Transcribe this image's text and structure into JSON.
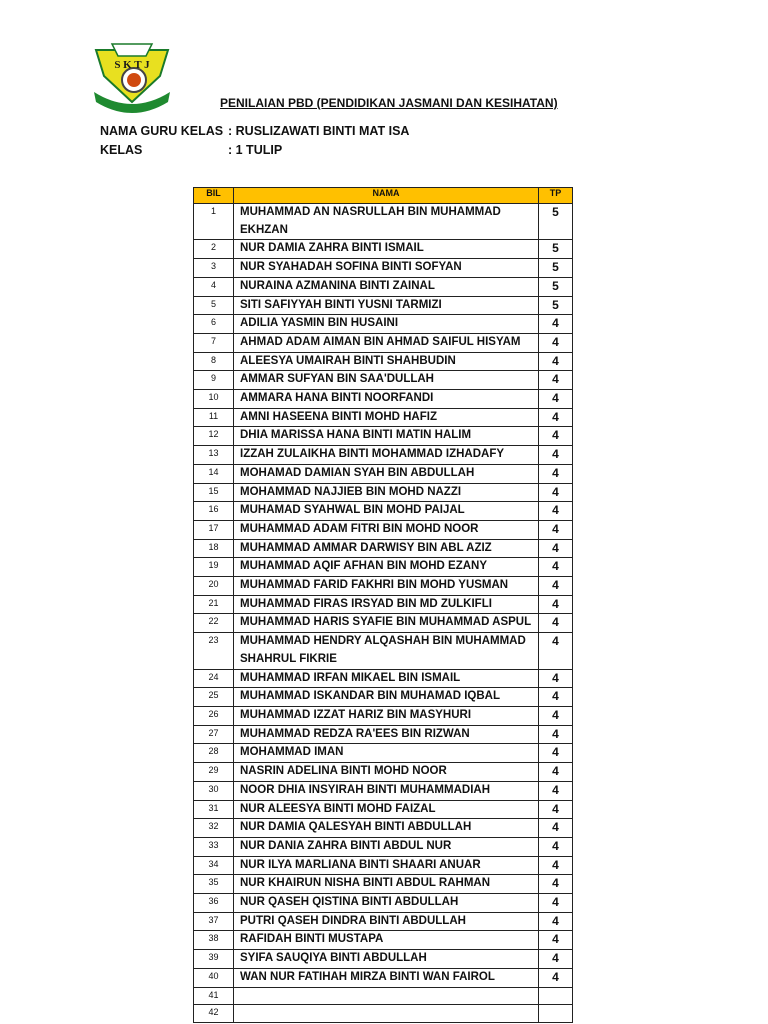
{
  "logo": {
    "text": "SKTJ"
  },
  "title": "PENILAIAN PBD (PENDIDIKAN JASMANI DAN KESIHATAN)",
  "teacher": {
    "label": "NAMA GURU KELAS",
    "value": ": RUSLIZAWATI BINTI MAT ISA"
  },
  "class": {
    "label": "KELAS",
    "value": ": 1 TULIP"
  },
  "table": {
    "headers": [
      "BIL",
      "NAMA",
      "TP"
    ],
    "header_color": "#ffc000",
    "rows": [
      {
        "bil": "1",
        "nama": "MUHAMMAD AN NASRULLAH BIN MUHAMMAD EKHZAN",
        "tp": "5"
      },
      {
        "bil": "2",
        "nama": "NUR DAMIA ZAHRA BINTI ISMAIL",
        "tp": "5"
      },
      {
        "bil": "3",
        "nama": "NUR SYAHADAH SOFINA BINTI SOFYAN",
        "tp": "5"
      },
      {
        "bil": "4",
        "nama": "NURAINA AZMANINA BINTI ZAINAL",
        "tp": "5"
      },
      {
        "bil": "5",
        "nama": "SITI SAFIYYAH BINTI YUSNI TARMIZI",
        "tp": "5"
      },
      {
        "bil": "6",
        "nama": "ADILIA YASMIN BIN HUSAINI",
        "tp": "4"
      },
      {
        "bil": "7",
        "nama": "AHMAD ADAM AIMAN BIN AHMAD SAIFUL HISYAM",
        "tp": "4"
      },
      {
        "bil": "8",
        "nama": "ALEESYA UMAIRAH BINTI SHAHBUDIN",
        "tp": "4"
      },
      {
        "bil": "9",
        "nama": "AMMAR SUFYAN BIN SAA'DULLAH",
        "tp": "4"
      },
      {
        "bil": "10",
        "nama": "AMMARA HANA BINTI NOORFANDI",
        "tp": "4"
      },
      {
        "bil": "11",
        "nama": "AMNI HASEENA BINTI MOHD HAFIZ",
        "tp": "4"
      },
      {
        "bil": "12",
        "nama": "DHIA MARISSA HANA BINTI MATIN HALIM",
        "tp": "4"
      },
      {
        "bil": "13",
        "nama": "IZZAH ZULAIKHA BINTI MOHAMMAD IZHADAFY",
        "tp": "4"
      },
      {
        "bil": "14",
        "nama": "MOHAMAD DAMIAN SYAH BIN ABDULLAH",
        "tp": "4"
      },
      {
        "bil": "15",
        "nama": "MOHAMMAD NAJJIEB BIN MOHD NAZZI",
        "tp": "4"
      },
      {
        "bil": "16",
        "nama": "MUHAMAD SYAHWAL BIN MOHD PAIJAL",
        "tp": "4"
      },
      {
        "bil": "17",
        "nama": "MUHAMMAD ADAM FITRI BIN MOHD NOOR",
        "tp": "4"
      },
      {
        "bil": "18",
        "nama": "MUHAMMAD AMMAR DARWISY BIN ABL AZIZ",
        "tp": "4"
      },
      {
        "bil": "19",
        "nama": "MUHAMMAD AQIF AFHAN BIN MOHD EZANY",
        "tp": "4"
      },
      {
        "bil": "20",
        "nama": "MUHAMMAD FARID FAKHRI BIN MOHD YUSMAN",
        "tp": "4"
      },
      {
        "bil": "21",
        "nama": "MUHAMMAD FIRAS IRSYAD BIN MD ZULKIFLI",
        "tp": "4"
      },
      {
        "bil": "22",
        "nama": "MUHAMMAD HARIS SYAFIE BIN MUHAMMAD ASPUL",
        "tp": "4"
      },
      {
        "bil": "23",
        "nama": "MUHAMMAD HENDRY ALQASHAH BIN MUHAMMAD SHAHRUL FIKRIE",
        "tp": "4"
      },
      {
        "bil": "24",
        "nama": "MUHAMMAD IRFAN MIKAEL BIN ISMAIL",
        "tp": "4"
      },
      {
        "bil": "25",
        "nama": "MUHAMMAD ISKANDAR BIN MUHAMAD IQBAL",
        "tp": "4"
      },
      {
        "bil": "26",
        "nama": "MUHAMMAD IZZAT HARIZ BIN MASYHURI",
        "tp": "4"
      },
      {
        "bil": "27",
        "nama": "MUHAMMAD REDZA RA'EES BIN RIZWAN",
        "tp": "4"
      },
      {
        "bil": "28",
        "nama": "MOHAMMAD IMAN",
        "tp": "4"
      },
      {
        "bil": "29",
        "nama": "NASRIN ADELINA BINTI MOHD NOOR",
        "tp": "4"
      },
      {
        "bil": "30",
        "nama": "NOOR DHIA INSYIRAH BINTI MUHAMMADIAH",
        "tp": "4"
      },
      {
        "bil": "31",
        "nama": "NUR ALEESYA BINTI MOHD FAIZAL",
        "tp": "4"
      },
      {
        "bil": "32",
        "nama": "NUR DAMIA QALESYAH BINTI ABDULLAH",
        "tp": "4"
      },
      {
        "bil": "33",
        "nama": "NUR DANIA ZAHRA BINTI ABDUL NUR",
        "tp": "4"
      },
      {
        "bil": "34",
        "nama": "NUR ILYA MARLIANA BINTI SHAARI ANUAR",
        "tp": "4"
      },
      {
        "bil": "35",
        "nama": "NUR KHAIRUN NISHA BINTI ABDUL RAHMAN",
        "tp": "4"
      },
      {
        "bil": "36",
        "nama": "NUR QASEH QISTINA BINTI ABDULLAH",
        "tp": "4"
      },
      {
        "bil": "37",
        "nama": "PUTRI QASEH DINDRA BINTI ABDULLAH",
        "tp": "4"
      },
      {
        "bil": "38",
        "nama": "RAFIDAH BINTI MUSTAPA",
        "tp": "4"
      },
      {
        "bil": "39",
        "nama": "SYIFA SAUQIYA BINTI ABDULLAH",
        "tp": "4"
      },
      {
        "bil": "40",
        "nama": "WAN NUR FATIHAH MIRZA BINTI WAN FAIROL",
        "tp": "4"
      },
      {
        "bil": "41",
        "nama": "",
        "tp": ""
      },
      {
        "bil": "42",
        "nama": "",
        "tp": ""
      }
    ]
  }
}
